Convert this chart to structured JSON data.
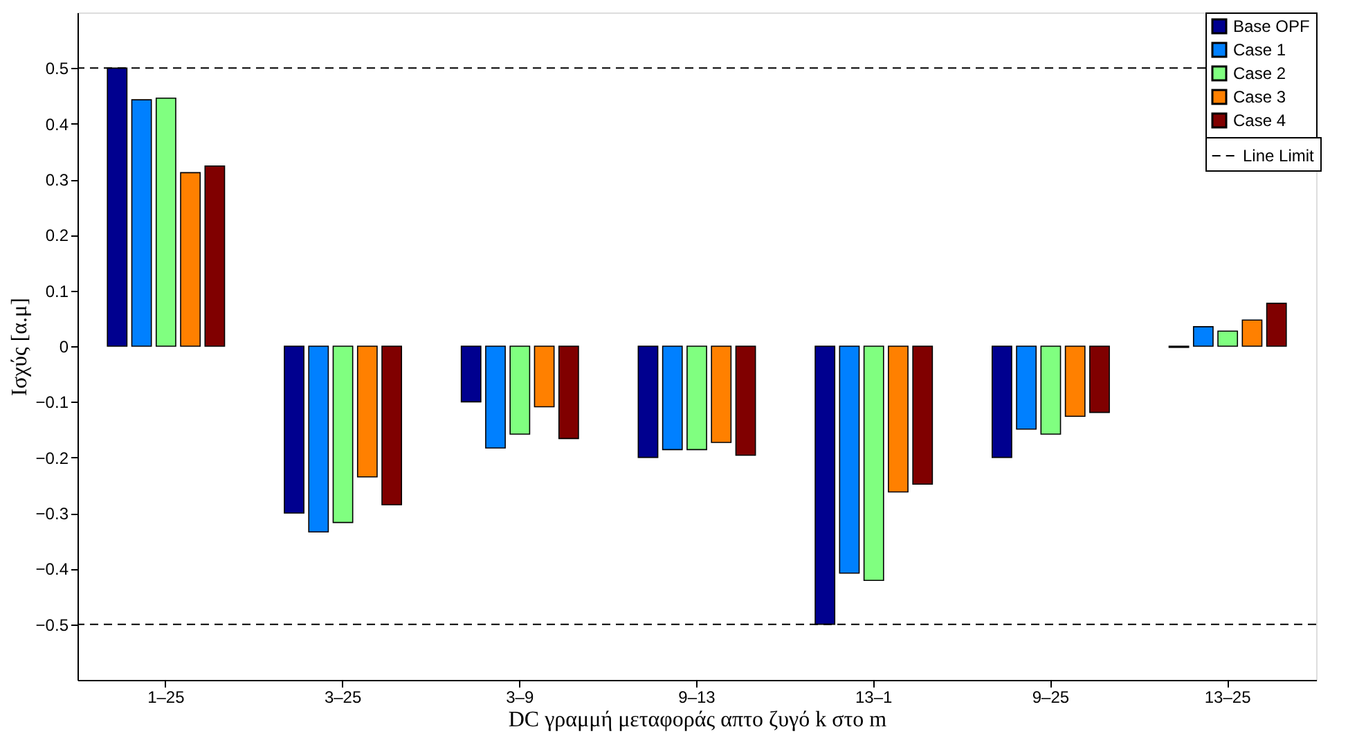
{
  "chart_data": {
    "type": "bar",
    "xlabel": "DC γραμμή μεταφοράς απτο ζυγό k στο m",
    "ylabel": "Ισχύς [α.μ]",
    "categories": [
      "1–25",
      "3–25",
      "3–9",
      "9–13",
      "13–1",
      "9–25",
      "13–25"
    ],
    "series": [
      {
        "name": "Base OPF",
        "color": "#00008f",
        "values": [
          0.5,
          -0.3,
          -0.1,
          -0.2,
          -0.5,
          -0.2,
          -0.002
        ]
      },
      {
        "name": "Case 1",
        "color": "#0080ff",
        "values": [
          0.443,
          -0.334,
          -0.183,
          -0.186,
          -0.408,
          -0.149,
          0.035
        ]
      },
      {
        "name": "Case 2",
        "color": "#80ff80",
        "values": [
          0.446,
          -0.317,
          -0.158,
          -0.186,
          -0.421,
          -0.158,
          0.027
        ]
      },
      {
        "name": "Case 3",
        "color": "#ff8000",
        "values": [
          0.312,
          -0.235,
          -0.109,
          -0.173,
          -0.262,
          -0.126,
          0.047
        ]
      },
      {
        "name": "Case 4",
        "color": "#800000",
        "values": [
          0.324,
          -0.285,
          -0.166,
          -0.196,
          -0.248,
          -0.119,
          0.077
        ]
      }
    ],
    "ylim": [
      -0.6,
      0.6
    ],
    "yticks": [
      -0.5,
      -0.4,
      -0.3,
      -0.2,
      -0.1,
      0,
      0.1,
      0.2,
      0.3,
      0.4,
      0.5
    ],
    "ref_lines": [
      {
        "axis": "y",
        "value": 0.5,
        "label": "Line Limit",
        "color": "#000000",
        "line_style": "dashed"
      },
      {
        "axis": "y",
        "value": -0.5,
        "color": "#000000",
        "line_style": "dashed"
      }
    ],
    "legend": "top right",
    "grid": false
  }
}
